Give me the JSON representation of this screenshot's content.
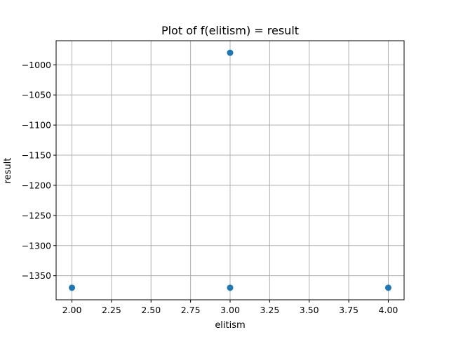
{
  "chart_data": {
    "type": "scatter",
    "title": "Plot of f(elitism) = result",
    "xlabel": "elitism",
    "ylabel": "result",
    "xlim": [
      1.9,
      4.1
    ],
    "ylim": [
      -1390,
      -960
    ],
    "x_ticks": [
      2.0,
      2.25,
      2.5,
      2.75,
      3.0,
      3.25,
      3.5,
      3.75,
      4.0
    ],
    "x_tick_labels": [
      "2.00",
      "2.25",
      "2.50",
      "2.75",
      "3.00",
      "3.25",
      "3.50",
      "3.75",
      "4.00"
    ],
    "y_ticks": [
      -1000,
      -1050,
      -1100,
      -1150,
      -1200,
      -1250,
      -1300,
      -1350
    ],
    "y_tick_labels": [
      "−1000",
      "−1050",
      "−1100",
      "−1150",
      "−1200",
      "−1250",
      "−1300",
      "−1350"
    ],
    "grid": true,
    "series": [
      {
        "x": [
          2.0,
          3.0,
          3.0,
          4.0
        ],
        "y": [
          -1370,
          -980,
          -1370,
          -1370
        ],
        "color": "#1f77b4"
      }
    ]
  }
}
